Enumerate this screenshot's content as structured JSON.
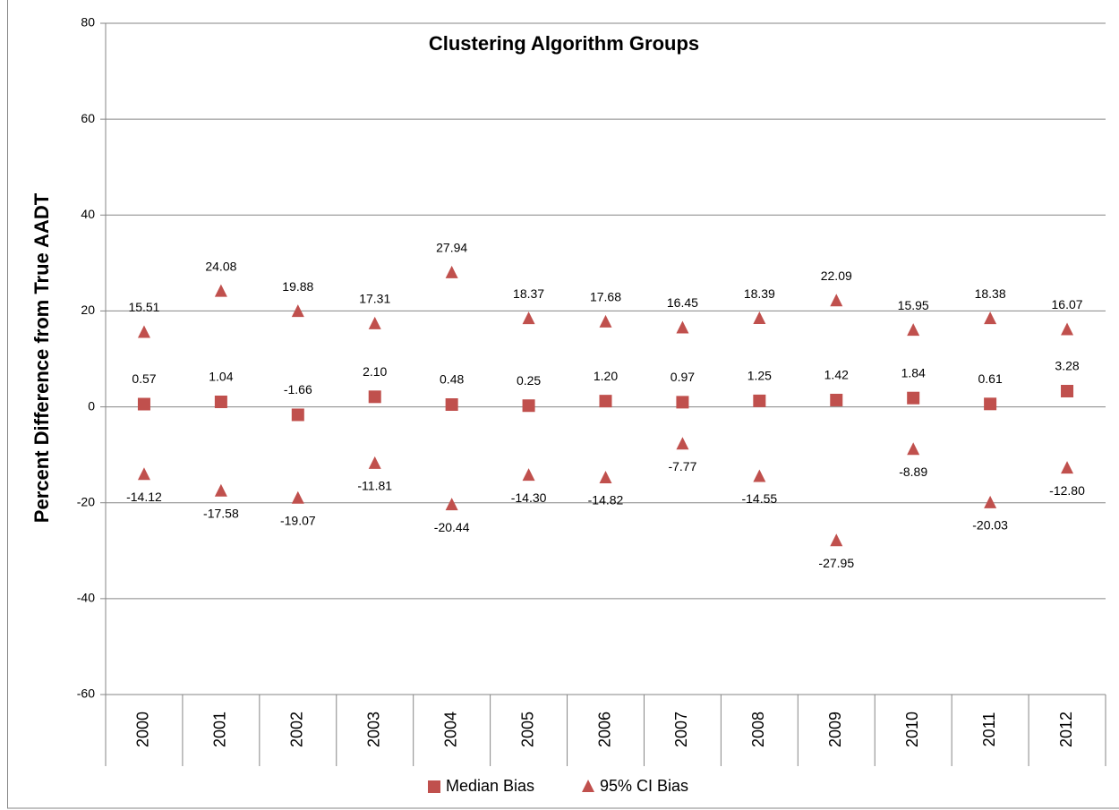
{
  "chart_data": {
    "type": "scatter",
    "title": "Clustering Algorithm Groups",
    "y_label": "Percent Difference from True AADT",
    "categories": [
      "2000",
      "2001",
      "2002",
      "2003",
      "2004",
      "2005",
      "2006",
      "2007",
      "2008",
      "2009",
      "2010",
      "2011",
      "2012"
    ],
    "series": [
      {
        "name": "Median Bias",
        "color": "#c0504d",
        "marker": "square",
        "values": [
          0.57,
          1.04,
          -1.66,
          2.1,
          0.48,
          0.25,
          1.2,
          0.97,
          1.25,
          1.42,
          1.84,
          0.61,
          3.28
        ],
        "value_labels": [
          "0.57",
          "1.04",
          "-1.66",
          "2.10",
          "0.48",
          "0.25",
          "1.20",
          "0.97",
          "1.25",
          "1.42",
          "1.84",
          "0.61",
          "3.28"
        ]
      },
      {
        "name": "95% CI Bias",
        "color": "#c0504d",
        "marker": "triangle",
        "values": [
          15.51,
          24.08,
          19.88,
          17.31,
          27.94,
          18.37,
          17.68,
          16.45,
          18.39,
          22.09,
          15.95,
          18.38,
          16.07
        ],
        "value_labels": [
          "15.51",
          "24.08",
          "19.88",
          "17.31",
          "27.94",
          "18.37",
          "17.68",
          "16.45",
          "18.39",
          "22.09",
          "15.95",
          "18.38",
          "16.07"
        ],
        "lower": [
          -14.12,
          -17.58,
          -19.07,
          -11.81,
          -20.44,
          -14.3,
          -14.82,
          -7.77,
          -14.55,
          -27.95,
          -8.89,
          -20.03,
          -12.8
        ],
        "lower_labels": [
          "-14.12",
          "-17.58",
          "-19.07",
          "-11.81",
          "-20.44",
          "-14.30",
          "-14.82",
          "-7.77",
          "-14.55",
          "-27.95",
          "-8.89",
          "-20.03",
          "-12.80"
        ]
      }
    ],
    "ylim": [
      -60,
      80
    ],
    "yticks": [
      -60,
      -40,
      -20,
      0,
      20,
      40,
      60,
      80
    ],
    "grid": true,
    "legend": "bottom"
  }
}
